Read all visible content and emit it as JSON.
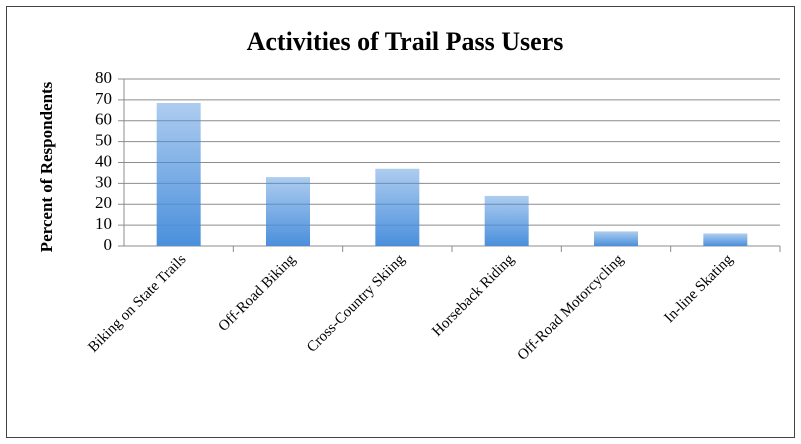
{
  "chart_data": {
    "type": "bar",
    "title": "Activities of Trail Pass Users",
    "y_label": "Percent of Respondents",
    "categories": [
      "Biking on State Trails",
      "Off-Road Biking",
      "Cross-Country Skiing",
      "Horseback Riding",
      "Off-Road Motorcycling",
      "In-line Skating"
    ],
    "values": [
      68.5,
      33,
      37,
      24,
      7,
      6
    ],
    "color": "#4a8fdc",
    "ylim": [
      0,
      80
    ],
    "yticks": [
      0,
      10,
      20,
      30,
      40,
      50,
      60,
      70,
      80
    ],
    "grid": true
  }
}
